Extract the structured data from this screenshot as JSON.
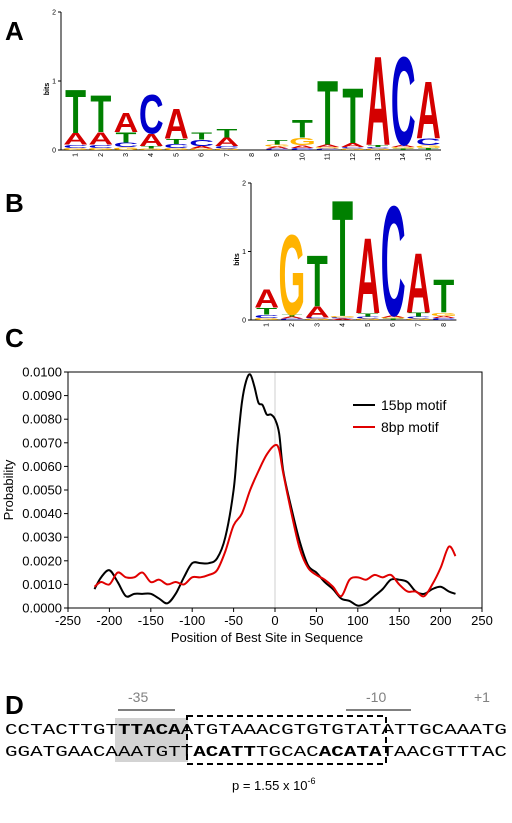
{
  "panels": {
    "A": "A",
    "B": "B",
    "C": "C",
    "D": "D"
  },
  "colors": {
    "A": "#d40000",
    "C": "#0000cc",
    "G": "#ffb300",
    "T": "#008000",
    "curve_15bp": "#000000",
    "curve_8bp": "#e00000",
    "highlight": "#d3d3d3"
  },
  "logo_A": {
    "ylabel": "bits",
    "yticks": [
      "0",
      "1",
      "2"
    ],
    "positions": [
      {
        "pos": "1",
        "stack": [
          [
            "G",
            0.03
          ],
          [
            "C",
            0.05
          ],
          [
            "A",
            0.17
          ],
          [
            "T",
            0.65
          ]
        ]
      },
      {
        "pos": "2",
        "stack": [
          [
            "G",
            0.03
          ],
          [
            "C",
            0.05
          ],
          [
            "A",
            0.18
          ],
          [
            "T",
            0.55
          ]
        ]
      },
      {
        "pos": "3",
        "stack": [
          [
            "G",
            0.04
          ],
          [
            "C",
            0.07
          ],
          [
            "T",
            0.15
          ],
          [
            "A",
            0.29
          ]
        ]
      },
      {
        "pos": "4",
        "stack": [
          [
            "G",
            0.02
          ],
          [
            "T",
            0.04
          ],
          [
            "A",
            0.18
          ],
          [
            "C",
            0.58
          ]
        ]
      },
      {
        "pos": "5",
        "stack": [
          [
            "G",
            0.03
          ],
          [
            "C",
            0.06
          ],
          [
            "T",
            0.08
          ],
          [
            "A",
            0.44
          ]
        ]
      },
      {
        "pos": "6",
        "stack": [
          [
            "G",
            0.02
          ],
          [
            "A",
            0.04
          ],
          [
            "C",
            0.09
          ],
          [
            "T",
            0.11
          ]
        ]
      },
      {
        "pos": "7",
        "stack": [
          [
            "G",
            0.02
          ],
          [
            "C",
            0.04
          ],
          [
            "A",
            0.12
          ],
          [
            "T",
            0.12
          ]
        ]
      },
      {
        "pos": "8",
        "stack": [
          [
            "G",
            0.01
          ],
          [
            "C",
            0.01
          ],
          [
            "A",
            0.01
          ],
          [
            "T",
            0.01
          ]
        ]
      },
      {
        "pos": "9",
        "stack": [
          [
            "C",
            0.02
          ],
          [
            "A",
            0.03
          ],
          [
            "G",
            0.03
          ],
          [
            "T",
            0.07
          ]
        ]
      },
      {
        "pos": "10",
        "stack": [
          [
            "C",
            0.03
          ],
          [
            "A",
            0.04
          ],
          [
            "G",
            0.11
          ],
          [
            "T",
            0.26
          ]
        ]
      },
      {
        "pos": "11",
        "stack": [
          [
            "C",
            0.02
          ],
          [
            "G",
            0.02
          ],
          [
            "A",
            0.04
          ],
          [
            "T",
            0.96
          ]
        ]
      },
      {
        "pos": "12",
        "stack": [
          [
            "G",
            0.02
          ],
          [
            "C",
            0.02
          ],
          [
            "A",
            0.06
          ],
          [
            "T",
            0.82
          ]
        ]
      },
      {
        "pos": "13",
        "stack": [
          [
            "G",
            0.02
          ],
          [
            "C",
            0.02
          ],
          [
            "T",
            0.03
          ],
          [
            "A",
            1.33
          ]
        ]
      },
      {
        "pos": "14",
        "stack": [
          [
            "T",
            0.02
          ],
          [
            "G",
            0.02
          ],
          [
            "A",
            0.03
          ],
          [
            "C",
            1.32
          ]
        ]
      },
      {
        "pos": "15",
        "stack": [
          [
            "T",
            0.03
          ],
          [
            "G",
            0.04
          ],
          [
            "C",
            0.1
          ],
          [
            "A",
            0.85
          ]
        ]
      }
    ]
  },
  "logo_B": {
    "ylabel": "bits",
    "yticks": [
      "0",
      "1",
      "2"
    ],
    "positions": [
      {
        "pos": "1",
        "stack": [
          [
            "G",
            0.03
          ],
          [
            "C",
            0.05
          ],
          [
            "T",
            0.1
          ],
          [
            "A",
            0.27
          ]
        ]
      },
      {
        "pos": "2",
        "stack": [
          [
            "C",
            0.02
          ],
          [
            "A",
            0.03
          ],
          [
            "T",
            0.03
          ],
          [
            "G",
            1.2
          ]
        ]
      },
      {
        "pos": "3",
        "stack": [
          [
            "G",
            0.02
          ],
          [
            "C",
            0.02
          ],
          [
            "A",
            0.16
          ],
          [
            "T",
            0.77
          ]
        ]
      },
      {
        "pos": "4",
        "stack": [
          [
            "A",
            0.02
          ],
          [
            "C",
            0.02
          ],
          [
            "G",
            0.02
          ],
          [
            "T",
            1.75
          ]
        ]
      },
      {
        "pos": "5",
        "stack": [
          [
            "G",
            0.02
          ],
          [
            "C",
            0.03
          ],
          [
            "T",
            0.05
          ],
          [
            "A",
            1.13
          ]
        ]
      },
      {
        "pos": "6",
        "stack": [
          [
            "T",
            0.02
          ],
          [
            "G",
            0.02
          ],
          [
            "A",
            0.03
          ],
          [
            "C",
            1.65
          ]
        ]
      },
      {
        "pos": "7",
        "stack": [
          [
            "G",
            0.02
          ],
          [
            "C",
            0.03
          ],
          [
            "T",
            0.06
          ],
          [
            "A",
            0.9
          ]
        ]
      },
      {
        "pos": "8",
        "stack": [
          [
            "C",
            0.03
          ],
          [
            "A",
            0.03
          ],
          [
            "G",
            0.05
          ],
          [
            "T",
            0.5
          ]
        ]
      }
    ]
  },
  "chart_data": {
    "type": "line",
    "xlabel": "Position of Best Site in Sequence",
    "ylabel": "Probability",
    "xlim": [
      -250,
      250
    ],
    "ylim": [
      0,
      0.01
    ],
    "xticks": [
      "-250",
      "-200",
      "-150",
      "-100",
      "-50",
      "0",
      "50",
      "100",
      "150",
      "200",
      "250"
    ],
    "yticks": [
      "0.0000",
      "0.0010",
      "0.0020",
      "0.0030",
      "0.0040",
      "0.0050",
      "0.0060",
      "0.0070",
      "0.0080",
      "0.0090",
      "0.0100"
    ],
    "legend_position": "top-right",
    "series": [
      {
        "name": "15bp motif",
        "x": [
          -218,
          -210,
          -200,
          -190,
          -180,
          -170,
          -160,
          -150,
          -140,
          -130,
          -120,
          -110,
          -100,
          -90,
          -80,
          -70,
          -60,
          -50,
          -45,
          -40,
          -35,
          -30,
          -25,
          -20,
          -15,
          -10,
          -5,
          0,
          5,
          10,
          20,
          30,
          40,
          50,
          60,
          70,
          80,
          90,
          100,
          110,
          120,
          130,
          140,
          150,
          160,
          170,
          180,
          190,
          200,
          210,
          218
        ],
        "y": [
          0.0008,
          0.0013,
          0.0016,
          0.0011,
          0.0005,
          0.0006,
          0.0006,
          0.0006,
          0.0004,
          0.0002,
          0.0006,
          0.0013,
          0.0019,
          0.0019,
          0.0019,
          0.0021,
          0.003,
          0.005,
          0.007,
          0.0087,
          0.0096,
          0.0099,
          0.0094,
          0.0087,
          0.0086,
          0.0082,
          0.0082,
          0.008,
          0.0074,
          0.0058,
          0.0042,
          0.0028,
          0.0018,
          0.0015,
          0.0011,
          0.0008,
          0.0004,
          0.0003,
          0.0001,
          0.0002,
          0.0005,
          0.0008,
          0.0012,
          0.0012,
          0.0011,
          0.0007,
          0.0006,
          0.0008,
          0.0009,
          0.0007,
          0.0006
        ]
      },
      {
        "name": "8bp motif",
        "x": [
          -218,
          -210,
          -200,
          -190,
          -180,
          -170,
          -160,
          -150,
          -140,
          -130,
          -120,
          -110,
          -100,
          -90,
          -80,
          -70,
          -60,
          -50,
          -40,
          -30,
          -20,
          -10,
          0,
          5,
          10,
          20,
          30,
          40,
          50,
          60,
          70,
          80,
          90,
          100,
          110,
          120,
          130,
          140,
          150,
          160,
          170,
          180,
          190,
          200,
          210,
          218
        ],
        "y": [
          0.0009,
          0.0011,
          0.001,
          0.0015,
          0.0013,
          0.0013,
          0.0015,
          0.0011,
          0.0012,
          0.001,
          0.0011,
          0.001,
          0.0013,
          0.0013,
          0.0014,
          0.0016,
          0.0024,
          0.0035,
          0.004,
          0.005,
          0.0058,
          0.0065,
          0.0069,
          0.0067,
          0.0057,
          0.004,
          0.0025,
          0.0017,
          0.0014,
          0.0012,
          0.0009,
          0.0005,
          0.0012,
          0.0013,
          0.0012,
          0.0014,
          0.0013,
          0.0014,
          0.001,
          0.0007,
          0.0007,
          0.0005,
          0.001,
          0.0017,
          0.0026,
          0.0022
        ]
      }
    ]
  },
  "sequence": {
    "label_35": "-35",
    "label_10": "-10",
    "label_plus1": "+1",
    "top": {
      "pre": "CCTACTTGT",
      "bold": "TTACA",
      "rest": "ATGTAAACGTGTGTATATTGCAAATG"
    },
    "bottom": {
      "pre": "GGATGAACAAATGTT",
      "bold1": "ACATT",
      "mid": "TGCAC",
      "bold2": "ACATA",
      "rest": "TAACGTTTAC"
    },
    "pvalue": "p = 1.55 x 10",
    "pvalue_exp": "-6"
  }
}
